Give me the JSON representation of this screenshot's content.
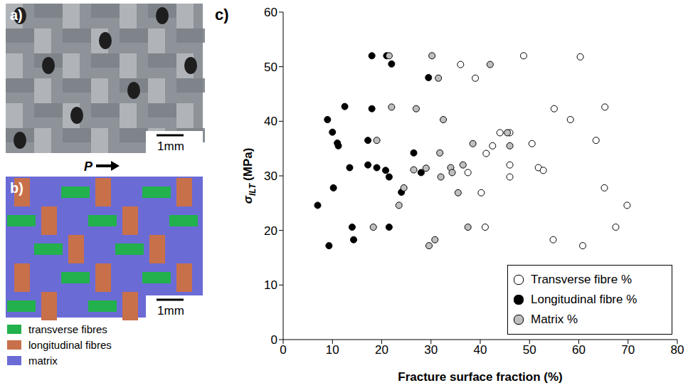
{
  "panel_a": {
    "letter": "a)",
    "scale_bar": "1mm",
    "arrow_label": "P"
  },
  "panel_b": {
    "letter": "b)",
    "scale_bar": "1mm",
    "legend": [
      {
        "name": "transverse fibres",
        "color": "#22b14c"
      },
      {
        "name": "longitudinal fibres",
        "color": "#c8704a"
      },
      {
        "name": "matrix",
        "color": "#6b6bd6"
      }
    ]
  },
  "chart_data": {
    "type": "scatter",
    "letter": "c)",
    "x_label": "Fracture surface fraction (%)",
    "y_label": {
      "symbol": "σ",
      "subscript": "ILT",
      "unit": "(MPa)"
    },
    "xlim": [
      0,
      80
    ],
    "xticks": [
      0,
      10,
      20,
      30,
      40,
      50,
      60,
      70,
      80
    ],
    "ylim": [
      0,
      60
    ],
    "yticks": [
      0,
      10,
      20,
      30,
      40,
      50,
      60
    ],
    "grid": false,
    "legend": "lower right",
    "series": [
      {
        "name": "Transverse fibre %",
        "color": "#ffffff",
        "marker": "circle",
        "x": [
          48.8,
          60.3,
          36,
          39,
          55,
          65.3,
          58.3,
          44,
          46,
          63.5,
          50.5,
          42.5,
          41.2,
          51.8,
          52.8,
          46,
          37.5,
          46,
          40.2,
          65.2,
          69.8,
          41,
          67.5,
          54.8,
          60.8
        ],
        "y": [
          52,
          51.8,
          50.4,
          47.9,
          42.3,
          42.6,
          40.3,
          37.9,
          37.9,
          36.5,
          35.9,
          35.5,
          34.1,
          31.5,
          31,
          32,
          30.6,
          29.8,
          26.9,
          27.8,
          24.6,
          20.6,
          20.6,
          18.3,
          17.2
        ]
      },
      {
        "name": "Longitudinal fibre %",
        "color": "#000000",
        "marker": "circle",
        "x": [
          18,
          21,
          22,
          29.5,
          9,
          12.5,
          18,
          10,
          11,
          11.2,
          17.2,
          26.5,
          13.5,
          17.2,
          19,
          20.8,
          21.5,
          28,
          24,
          10.2,
          7,
          14,
          21.5,
          14.3,
          9.3
        ],
        "y": [
          52,
          52,
          50.5,
          48,
          40.3,
          42.7,
          42.3,
          38,
          36,
          35.5,
          36.5,
          34.2,
          31.5,
          32,
          31.5,
          31,
          29.8,
          30.6,
          27,
          27.8,
          24.6,
          20.6,
          20.6,
          18.3,
          17.2
        ]
      },
      {
        "name": "Matrix %",
        "color": "#bfbfbf",
        "marker": "circle",
        "x": [
          21.5,
          30.2,
          31.5,
          42,
          22,
          27,
          32.5,
          45.5,
          19,
          46,
          38.5,
          31.8,
          29,
          26.5,
          36.5,
          34,
          34.3,
          32,
          35.5,
          24.5,
          23.5,
          18.3,
          37.5,
          30.8,
          29.6
        ],
        "y": [
          52,
          52,
          47.9,
          50.4,
          42.6,
          42.3,
          40.3,
          37.9,
          36.5,
          35.5,
          35.9,
          34.2,
          31.4,
          31.1,
          32,
          31.5,
          30.6,
          29.8,
          26.9,
          27.8,
          24.6,
          20.6,
          20.6,
          18.3,
          17.2
        ]
      }
    ]
  }
}
